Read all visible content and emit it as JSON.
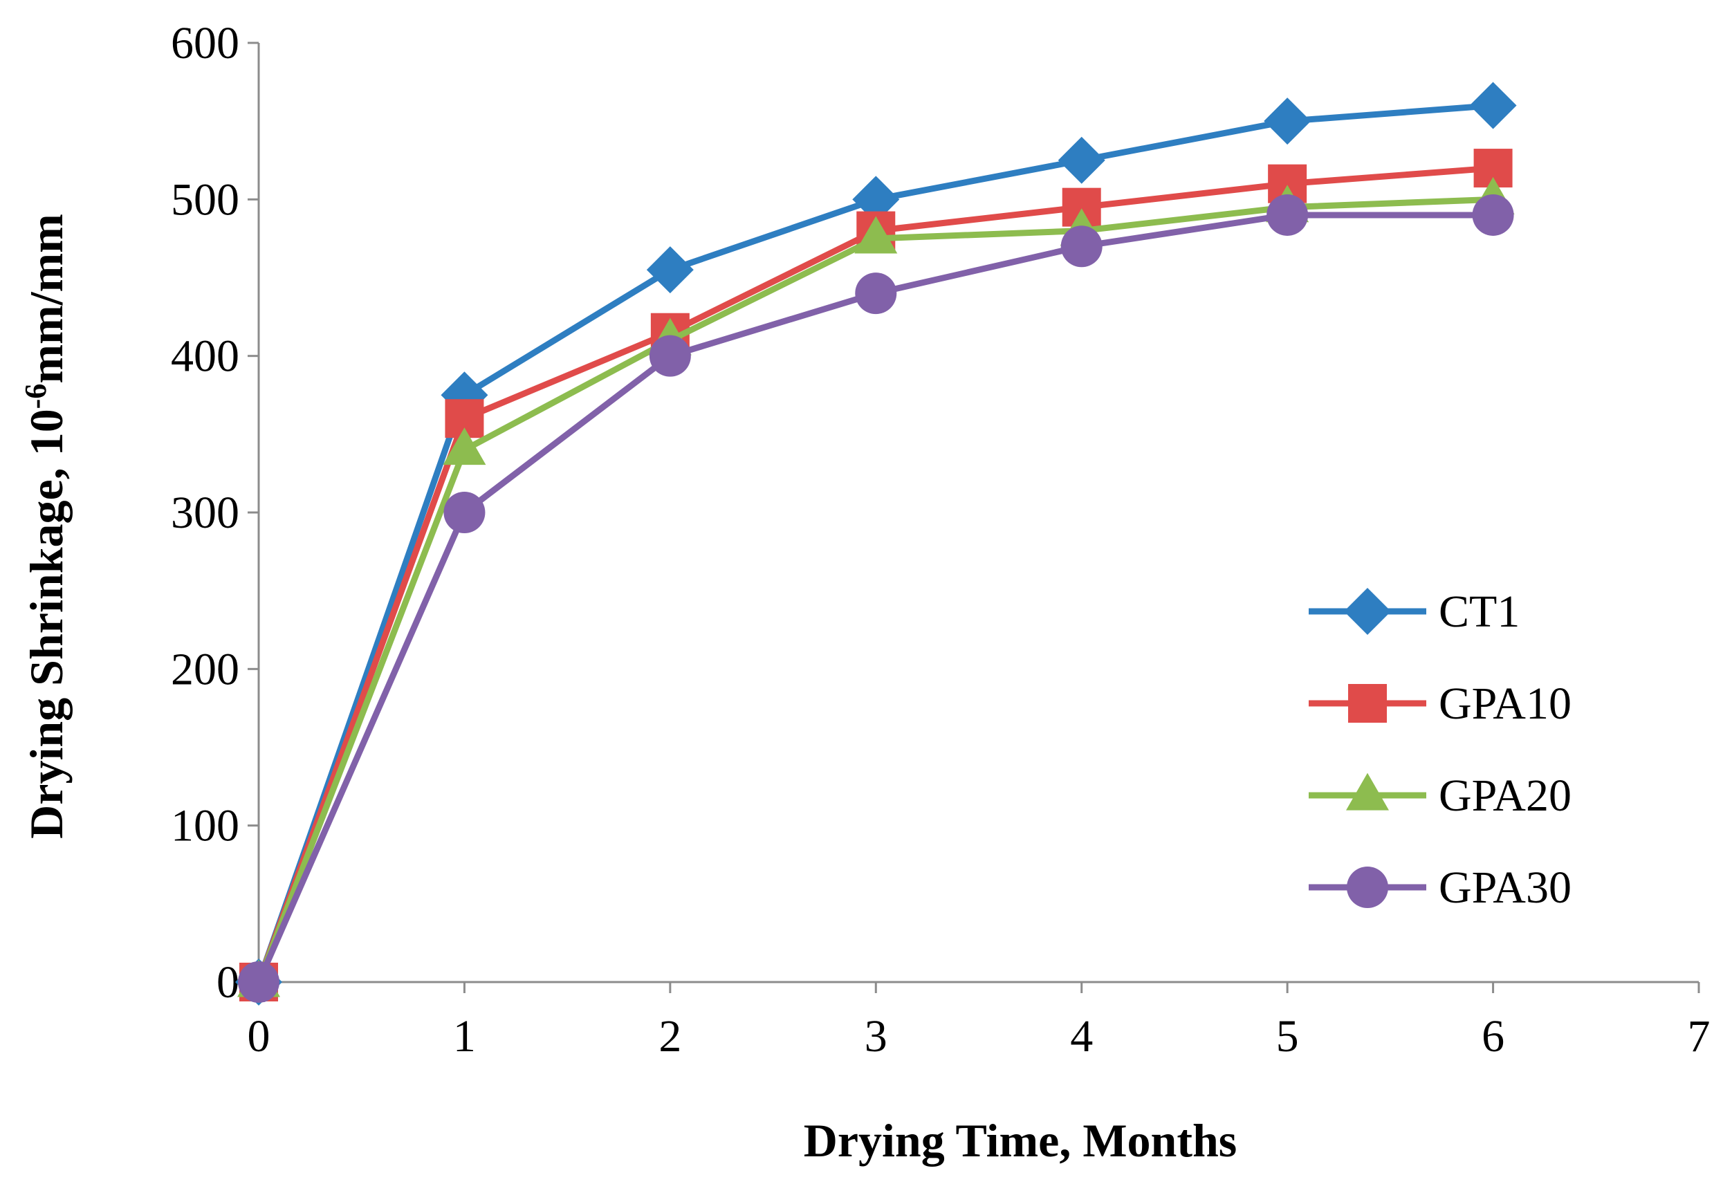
{
  "chart_data": {
    "type": "line",
    "title": "",
    "xlabel": "Drying Time, Months",
    "ylabel_main": "Drying Shrinkage, 10",
    "ylabel_sup": "-6",
    "ylabel_unit": "mm/mm",
    "xlim": [
      0,
      7
    ],
    "ylim": [
      0,
      600
    ],
    "xticks": [
      0,
      1,
      2,
      3,
      4,
      5,
      6,
      7
    ],
    "yticks": [
      0,
      100,
      200,
      300,
      400,
      500,
      600
    ],
    "grid": false,
    "legend_position": "right",
    "x": [
      0,
      1,
      2,
      3,
      4,
      5,
      6
    ],
    "series": [
      {
        "name": "CT1",
        "marker": "diamond",
        "color": "#2E7EC1",
        "values": [
          0,
          375,
          455,
          500,
          525,
          550,
          560
        ]
      },
      {
        "name": "GPA10",
        "marker": "square",
        "color": "#E04B4A",
        "values": [
          0,
          360,
          415,
          480,
          495,
          510,
          520
        ]
      },
      {
        "name": "GPA20",
        "marker": "triangle",
        "color": "#8DBC4F",
        "values": [
          0,
          340,
          410,
          475,
          480,
          495,
          500
        ]
      },
      {
        "name": "GPA30",
        "marker": "circle",
        "color": "#8161A9",
        "values": [
          0,
          300,
          400,
          440,
          470,
          490,
          490
        ]
      }
    ]
  }
}
